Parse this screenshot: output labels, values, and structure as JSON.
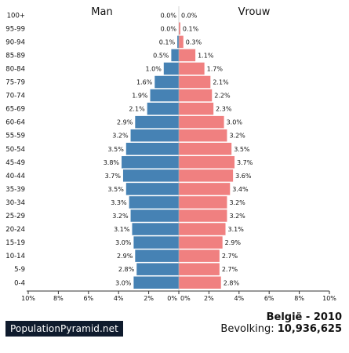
{
  "chart_data": {
    "type": "bar",
    "categories": [
      "0-4",
      "5-9",
      "10-14",
      "15-19",
      "20-24",
      "25-29",
      "30-34",
      "35-39",
      "40-44",
      "45-49",
      "50-54",
      "55-59",
      "60-64",
      "65-69",
      "70-74",
      "75-79",
      "80-84",
      "85-89",
      "90-94",
      "95-99",
      "100+"
    ],
    "series": [
      {
        "name": "Man",
        "color": "#4682b4",
        "values": [
          3.0,
          2.8,
          2.9,
          3.0,
          3.1,
          3.2,
          3.3,
          3.5,
          3.7,
          3.8,
          3.5,
          3.2,
          2.9,
          2.1,
          1.9,
          1.6,
          1.0,
          0.5,
          0.1,
          0.0,
          0.0
        ]
      },
      {
        "name": "Vrouw",
        "color": "#f08080",
        "values": [
          2.8,
          2.7,
          2.7,
          2.9,
          3.1,
          3.2,
          3.2,
          3.4,
          3.6,
          3.7,
          3.5,
          3.2,
          3.0,
          2.3,
          2.2,
          2.1,
          1.7,
          1.1,
          0.3,
          0.1,
          0.0
        ]
      }
    ],
    "xlim": [
      -10,
      10
    ],
    "x_ticks": [
      "10%",
      "8%",
      "6%",
      "4%",
      "2%",
      "0%",
      "0%",
      "2%",
      "4%",
      "6%",
      "8%",
      "10%"
    ],
    "value_labels": {
      "Man": [
        "3.0%",
        "2.8%",
        "2.9%",
        "3.0%",
        "3.1%",
        "3.2%",
        "3.3%",
        "3.5%",
        "3.7%",
        "3.8%",
        "3.5%",
        "3.2%",
        "2.9%",
        "2.1%",
        "1.9%",
        "1.6%",
        "1.0%",
        "0.5%",
        "0.1%",
        "0.0%",
        "0.0%"
      ],
      "Vrouw": [
        "2.8%",
        "2.7%",
        "2.7%",
        "2.9%",
        "3.1%",
        "3.2%",
        "3.2%",
        "3.4%",
        "3.6%",
        "3.7%",
        "3.5%",
        "3.2%",
        "3.0%",
        "2.3%",
        "2.2%",
        "2.1%",
        "1.7%",
        "1.1%",
        "0.3%",
        "0.1%",
        "0.0%"
      ]
    }
  },
  "footer": {
    "brand": "PopulationPyramid.net",
    "country_year": "België - 2010",
    "population_label": "Bevolking:",
    "population_value": "10,936,625"
  }
}
